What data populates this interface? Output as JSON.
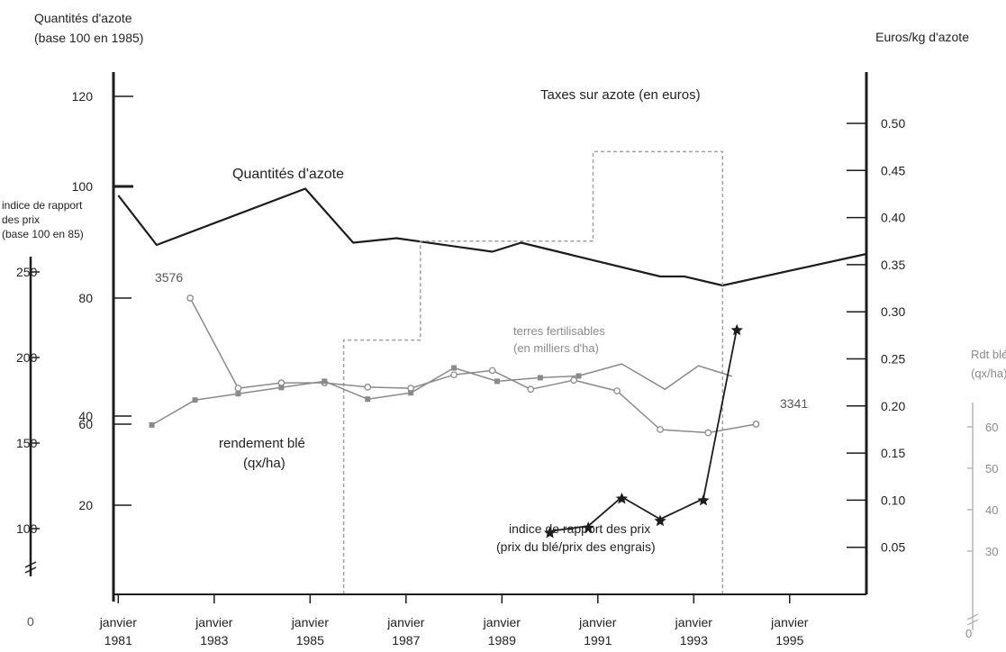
{
  "chart_data": {
    "type": "line",
    "axis_titles": {
      "left_quantities": [
        "Quantités d'azote",
        "(base 100 en 1985)"
      ],
      "left_index": [
        "indice de rapport",
        "des prix",
        "(base 100 en 85)"
      ],
      "right_euros": "Euros/kg d'azote",
      "right_rdt": [
        "Rdt blé",
        "(qx/ha)"
      ]
    },
    "x_axis": {
      "domain": [
        1980.9,
        1996.6
      ],
      "ticks": [
        {
          "x": 1981,
          "label": [
            "janvier",
            "1981"
          ]
        },
        {
          "x": 1983,
          "label": [
            "janvier",
            "1983"
          ]
        },
        {
          "x": 1985,
          "label": [
            "janvier",
            "1985"
          ]
        },
        {
          "x": 1987,
          "label": [
            "janvier",
            "1987"
          ]
        },
        {
          "x": 1989,
          "label": [
            "janvier",
            "1989"
          ]
        },
        {
          "x": 1991,
          "label": [
            "janvier",
            "1991"
          ]
        },
        {
          "x": 1993,
          "label": [
            "janvier",
            "1993"
          ]
        },
        {
          "x": 1995,
          "label": [
            "janvier",
            "1995"
          ]
        }
      ]
    },
    "y_axes": {
      "quantities": {
        "ticks": [
          {
            "v": 100,
            "label": "100"
          },
          {
            "v": 120,
            "label": "120"
          }
        ]
      },
      "terres": {
        "ticks": [
          {
            "v": 3576,
            "label": "80"
          },
          {
            "v": 3341,
            "label": "60"
          }
        ]
      },
      "left_inner": {
        "ticks": [
          {
            "v": 40,
            "label": "40"
          },
          {
            "v": 20,
            "label": "20"
          }
        ]
      },
      "index": {
        "ticks": [
          {
            "v": 250,
            "label": "250"
          },
          {
            "v": 200,
            "label": "200"
          },
          {
            "v": 150,
            "label": "150"
          },
          {
            "v": 100,
            "label": "100"
          }
        ]
      },
      "euros": {
        "range": [
          0,
          0.54
        ],
        "ticks": [
          0.05,
          0.1,
          0.15,
          0.2,
          0.25,
          0.3,
          0.35,
          0.4,
          0.45,
          0.5
        ],
        "tick_labels": [
          "0.05",
          "0.10",
          "0.15",
          "0.20",
          "0.25",
          "0.30",
          "0.35",
          "0.40",
          "0.45",
          "0.50"
        ]
      },
      "rdt": {
        "range": [
          20,
          66
        ],
        "ticks": [
          30,
          40,
          50,
          60
        ],
        "tick_labels": [
          "30",
          "40",
          "50",
          "60"
        ]
      }
    },
    "zero_labels": [
      "0",
      "0"
    ],
    "series": [
      {
        "name": "Quantités d'azote",
        "axis": "quantities",
        "points": [
          [
            1981,
            98
          ],
          [
            1981.8,
            87
          ],
          [
            1984.9,
            99.5
          ],
          [
            1985.9,
            87.5
          ],
          [
            1986.8,
            88.5
          ],
          [
            1988.8,
            85.5
          ],
          [
            1989.4,
            87.5
          ],
          [
            1992.3,
            80
          ],
          [
            1992.8,
            80
          ],
          [
            1993.6,
            78
          ],
          [
            1996.6,
            85
          ]
        ]
      },
      {
        "name": "Taxes sur azote (en euros)",
        "axis": "euros",
        "type": "step",
        "points": [
          [
            1985.7,
            0
          ],
          [
            1985.7,
            0.27
          ],
          [
            1987.3,
            0.27
          ],
          [
            1987.3,
            0.375
          ],
          [
            1990.9,
            0.375
          ],
          [
            1990.9,
            0.47
          ],
          [
            1993.6,
            0.47
          ],
          [
            1993.6,
            0
          ]
        ]
      },
      {
        "name": "terres fertilisables (en milliers d'ha)",
        "axis": "terres",
        "marker": "circle",
        "points": [
          [
            1982.5,
            3576
          ],
          [
            1983.5,
            3408
          ],
          [
            1984.4,
            3418
          ],
          [
            1985.3,
            3418
          ],
          [
            1986.2,
            3410
          ],
          [
            1987.1,
            3408
          ],
          [
            1988.0,
            3433
          ],
          [
            1988.8,
            3441
          ],
          [
            1989.6,
            3406
          ],
          [
            1990.5,
            3423
          ],
          [
            1991.4,
            3403
          ],
          [
            1992.3,
            3331
          ],
          [
            1993.3,
            3325
          ],
          [
            1994.3,
            3341
          ]
        ]
      },
      {
        "name": "rendement blé (qx/ha)",
        "axis": "rdt",
        "marker": "square",
        "points": [
          [
            1981.7,
            38
          ],
          [
            1982.6,
            43.6
          ],
          [
            1983.5,
            45
          ],
          [
            1984.4,
            46.4
          ],
          [
            1985.3,
            47.8
          ],
          [
            1986.2,
            43.8
          ],
          [
            1987.1,
            45.2
          ],
          [
            1988.0,
            50.8
          ],
          [
            1988.9,
            47.8
          ],
          [
            1989.8,
            48.6
          ],
          [
            1990.6,
            49
          ]
        ]
      },
      {
        "name": "rendement blé (qx/ha)",
        "axis": "rdt",
        "marker": "none",
        "points": [
          [
            1990.6,
            49
          ],
          [
            1991.5,
            51.7
          ],
          [
            1992.4,
            46
          ],
          [
            1993.1,
            51.3
          ],
          [
            1993.8,
            48.9
          ]
        ]
      },
      {
        "name": "indice de rapport des prix (prix du blé/prix des engrais)",
        "axis": "index",
        "marker": "star",
        "points": [
          [
            1990,
            98.5
          ],
          [
            1990.8,
            101.5
          ],
          [
            1991.5,
            118.5
          ],
          [
            1992.3,
            105.5
          ],
          [
            1993.2,
            117.5
          ],
          [
            1993.9,
            217
          ]
        ]
      }
    ],
    "annotations": [
      {
        "text": "Quantités d'azote",
        "color": "#222222"
      },
      {
        "text": "Taxes sur azote (en euros)",
        "color": "#222222"
      },
      {
        "text": "3576",
        "color": "#555555"
      },
      {
        "text": "3341",
        "color": "#555555"
      },
      {
        "text": "terres fertilisables",
        "color": "#8a8a8a"
      },
      {
        "text": "(en milliers d'ha)",
        "color": "#8a8a8a"
      },
      {
        "text": "rendement blé",
        "color": "#222222"
      },
      {
        "text": "(qx/ha)",
        "color": "#222222"
      },
      {
        "text": "indice de rapport des prix",
        "color": "#222222"
      },
      {
        "text": "(prix du blé/prix des engrais)",
        "color": "#222222"
      }
    ],
    "colors": {
      "dark": "#1c1c1c",
      "gray": "#8a8a8a",
      "light": "#b5b5b5",
      "dotted": "#a0a0a0"
    }
  }
}
